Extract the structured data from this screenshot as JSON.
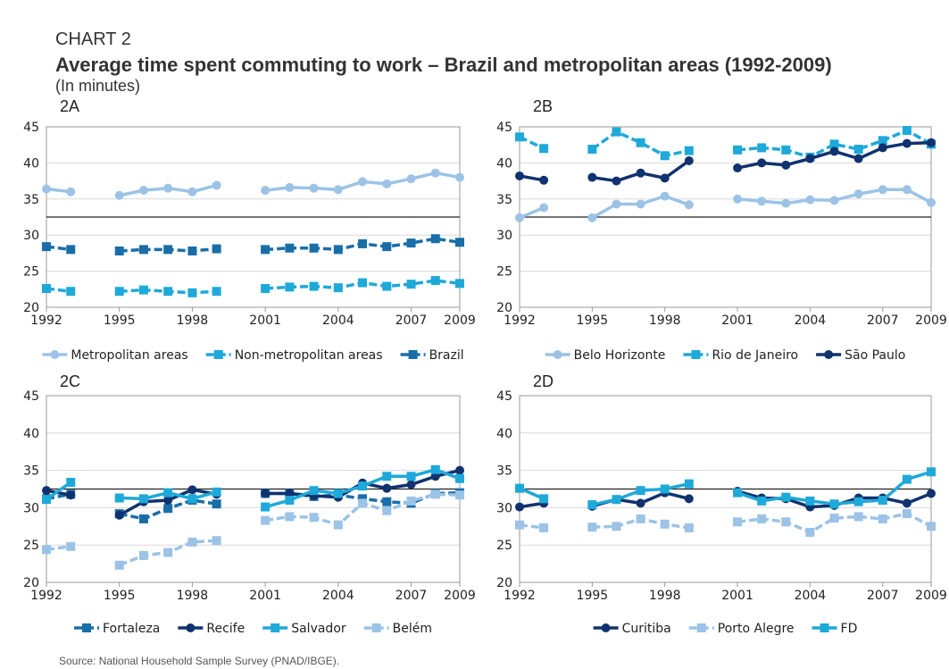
{
  "label": "CHART 2",
  "title": "Average time spent commuting to work – Brazil and metropolitan areas (1992-2009)",
  "subtitle": "(In minutes)",
  "source": "Source: National Household Sample Survey (PNAD/IBGE).",
  "chart_data": [
    {
      "type": "line",
      "title": "2A",
      "x": [
        1992,
        1993,
        1994,
        1995,
        1996,
        1997,
        1998,
        1999,
        2000,
        2001,
        2002,
        2003,
        2004,
        2005,
        2006,
        2007,
        2008,
        2009
      ],
      "xlim": [
        1992,
        2009
      ],
      "xticks": [
        1992,
        1995,
        1998,
        2001,
        2004,
        2007,
        2009
      ],
      "ylim": [
        20,
        45
      ],
      "yticks": [
        20,
        25,
        30,
        35,
        40,
        45
      ],
      "grid": true,
      "reference_line": 32.5,
      "series": [
        {
          "name": "Metropolitan areas",
          "color": "#9cc3e6",
          "marker": "circle",
          "dashed": false,
          "values": [
            36.4,
            36.0,
            null,
            35.5,
            36.2,
            36.5,
            36.0,
            36.9,
            null,
            36.2,
            36.6,
            36.5,
            36.3,
            37.4,
            37.1,
            37.8,
            38.6,
            38.0
          ]
        },
        {
          "name": "Non-metropolitan areas",
          "color": "#1ea9d9",
          "marker": "square",
          "dashed": true,
          "values": [
            22.6,
            22.2,
            null,
            22.2,
            22.4,
            22.2,
            22.0,
            22.2,
            null,
            22.6,
            22.8,
            22.9,
            22.7,
            23.4,
            22.9,
            23.2,
            23.7,
            23.3
          ]
        },
        {
          "name": "Brazil",
          "color": "#1a6ea8",
          "marker": "square",
          "dashed": true,
          "values": [
            28.4,
            28.0,
            null,
            27.8,
            28.0,
            28.0,
            27.8,
            28.1,
            null,
            28.0,
            28.2,
            28.2,
            28.0,
            28.8,
            28.4,
            28.9,
            29.5,
            29.0
          ]
        }
      ]
    },
    {
      "type": "line",
      "title": "2B",
      "x": [
        1992,
        1993,
        1994,
        1995,
        1996,
        1997,
        1998,
        1999,
        2000,
        2001,
        2002,
        2003,
        2004,
        2005,
        2006,
        2007,
        2008,
        2009
      ],
      "xlim": [
        1992,
        2009
      ],
      "xticks": [
        1992,
        1995,
        1998,
        2001,
        2004,
        2007,
        2009
      ],
      "ylim": [
        20,
        45
      ],
      "yticks": [
        20,
        25,
        30,
        35,
        40,
        45
      ],
      "grid": true,
      "reference_line": 32.5,
      "series": [
        {
          "name": "Belo Horizonte",
          "color": "#9cc3e6",
          "marker": "circle",
          "dashed": false,
          "values": [
            32.4,
            33.8,
            null,
            32.4,
            34.3,
            34.3,
            35.4,
            34.2,
            null,
            35.0,
            34.7,
            34.4,
            34.9,
            34.8,
            35.7,
            36.3,
            36.3,
            34.5
          ]
        },
        {
          "name": "Rio de Janeiro",
          "color": "#1ea9d9",
          "marker": "square",
          "dashed": true,
          "values": [
            43.6,
            42.0,
            null,
            41.9,
            44.3,
            42.8,
            41.0,
            41.7,
            null,
            41.8,
            42.1,
            41.8,
            40.8,
            42.6,
            41.9,
            43.1,
            44.5,
            42.6
          ]
        },
        {
          "name": "São Paulo",
          "color": "#10326f",
          "marker": "circle",
          "dashed": false,
          "values": [
            38.2,
            37.6,
            null,
            38.0,
            37.5,
            38.6,
            37.9,
            40.3,
            null,
            39.3,
            40.0,
            39.7,
            40.6,
            41.6,
            40.6,
            42.1,
            42.7,
            42.8
          ]
        }
      ]
    },
    {
      "type": "line",
      "title": "2C",
      "x": [
        1992,
        1993,
        1994,
        1995,
        1996,
        1997,
        1998,
        1999,
        2000,
        2001,
        2002,
        2003,
        2004,
        2005,
        2006,
        2007,
        2008,
        2009
      ],
      "xlim": [
        1992,
        2009
      ],
      "xticks": [
        1992,
        1995,
        1998,
        2001,
        2004,
        2007,
        2009
      ],
      "ylim": [
        20,
        45
      ],
      "yticks": [
        20,
        25,
        30,
        35,
        40,
        45
      ],
      "grid": true,
      "reference_line": 32.5,
      "series": [
        {
          "name": "Fortaleza",
          "color": "#1a6ea8",
          "marker": "square",
          "dashed": true,
          "values": [
            31.2,
            31.8,
            null,
            29.2,
            28.5,
            29.9,
            31.0,
            30.5,
            null,
            31.9,
            31.9,
            31.5,
            31.7,
            31.2,
            30.8,
            30.6,
            31.9,
            32.0
          ]
        },
        {
          "name": "Recife",
          "color": "#10326f",
          "marker": "circle",
          "dashed": false,
          "values": [
            32.3,
            31.7,
            null,
            29.0,
            30.8,
            31.0,
            32.4,
            31.8,
            null,
            31.9,
            31.9,
            31.6,
            31.4,
            33.3,
            32.6,
            33.1,
            34.2,
            35.0
          ]
        },
        {
          "name": "Salvador",
          "color": "#1ea9d9",
          "marker": "square",
          "dashed": false,
          "values": [
            31.1,
            33.4,
            null,
            31.3,
            31.2,
            32.0,
            31.2,
            32.1,
            null,
            30.1,
            31.0,
            32.3,
            31.9,
            32.9,
            34.2,
            34.2,
            35.1,
            33.9
          ]
        },
        {
          "name": "Belém",
          "color": "#9cc3e6",
          "marker": "square",
          "dashed": true,
          "values": [
            24.4,
            24.8,
            null,
            22.3,
            23.6,
            24.0,
            25.4,
            25.6,
            null,
            28.3,
            28.8,
            28.7,
            27.7,
            30.6,
            29.6,
            30.9,
            31.8,
            31.7
          ]
        }
      ]
    },
    {
      "type": "line",
      "title": "2D",
      "x": [
        1992,
        1993,
        1994,
        1995,
        1996,
        1997,
        1998,
        1999,
        2000,
        2001,
        2002,
        2003,
        2004,
        2005,
        2006,
        2007,
        2008,
        2009
      ],
      "xlim": [
        1992,
        2009
      ],
      "xticks": [
        1992,
        1995,
        1998,
        2001,
        2004,
        2007,
        2009
      ],
      "ylim": [
        20,
        45
      ],
      "yticks": [
        20,
        25,
        30,
        35,
        40,
        45
      ],
      "grid": true,
      "reference_line": 32.5,
      "series": [
        {
          "name": "Curitiba",
          "color": "#10326f",
          "marker": "circle",
          "dashed": false,
          "values": [
            30.1,
            30.6,
            null,
            30.2,
            31.1,
            30.6,
            32.0,
            31.2,
            null,
            32.2,
            31.3,
            31.2,
            30.1,
            30.3,
            31.3,
            31.3,
            30.6,
            31.9
          ]
        },
        {
          "name": "Porto Alegre",
          "color": "#9cc3e6",
          "marker": "square",
          "dashed": true,
          "values": [
            27.7,
            27.3,
            null,
            27.4,
            27.5,
            28.5,
            27.8,
            27.3,
            null,
            28.1,
            28.5,
            28.1,
            26.7,
            28.6,
            28.8,
            28.5,
            29.2,
            27.5
          ]
        },
        {
          "name": "FD",
          "color": "#1ea9d9",
          "marker": "square",
          "dashed": false,
          "values": [
            32.6,
            31.2,
            null,
            30.4,
            31.1,
            32.3,
            32.5,
            33.2,
            null,
            32.0,
            30.9,
            31.4,
            30.9,
            30.5,
            30.8,
            31.0,
            33.8,
            34.8
          ]
        }
      ]
    }
  ]
}
